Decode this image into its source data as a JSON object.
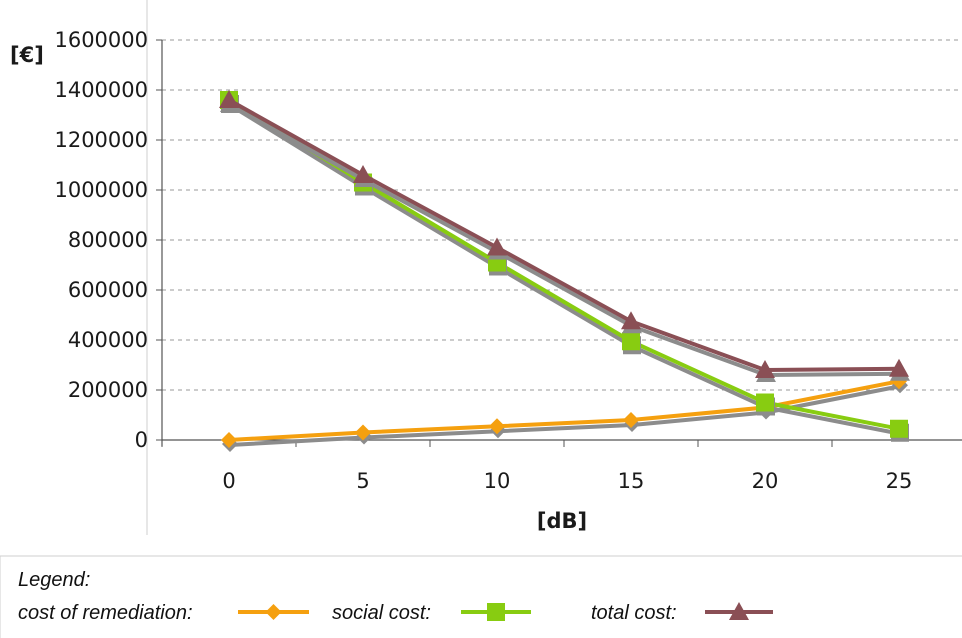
{
  "chart_data": {
    "type": "line",
    "x": [
      0,
      5,
      10,
      15,
      20,
      25
    ],
    "xlabel": "[dB]",
    "ylabel": "[€]",
    "xlim": [
      0,
      25
    ],
    "ylim": [
      0,
      1600000
    ],
    "y_ticks": [
      0,
      200000,
      400000,
      600000,
      800000,
      1000000,
      1200000,
      1400000,
      1600000
    ],
    "y_tick_labels": [
      "0",
      "200000",
      "400000",
      "600000",
      "800000",
      "1000000",
      "1200000",
      "1400000",
      "1600000"
    ],
    "x_tick_labels": [
      "0",
      "5",
      "10",
      "15",
      "20",
      "25"
    ],
    "grid": "horizontal dashed",
    "legend_position": "bottom-left",
    "series": [
      {
        "name": "cost of remediation:",
        "marker": "diamond",
        "color": "#f5a00f",
        "values": [
          0,
          30000,
          55000,
          80000,
          130000,
          235000
        ]
      },
      {
        "name": "social cost:",
        "marker": "square",
        "color": "#88cc11",
        "values": [
          1360000,
          1030000,
          710000,
          395000,
          150000,
          45000
        ]
      },
      {
        "name": "total cost:",
        "marker": "triangle",
        "color": "#8a4f55",
        "values": [
          1360000,
          1060000,
          770000,
          475000,
          280000,
          285000
        ]
      }
    ],
    "legend_title": "Legend:"
  }
}
